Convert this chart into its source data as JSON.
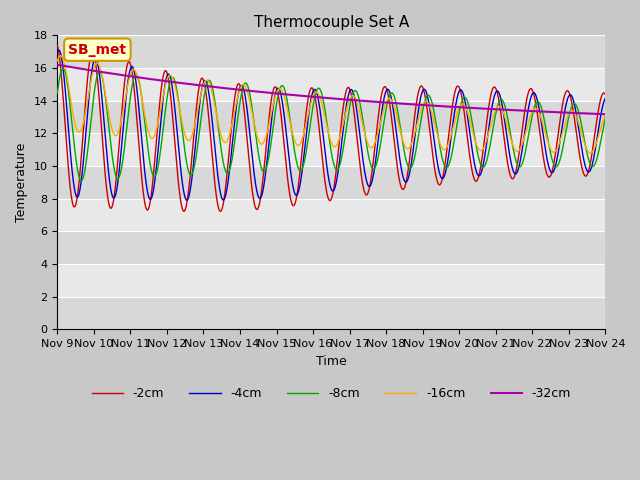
{
  "title": "Thermocouple Set A",
  "xlabel": "Time",
  "ylabel": "Temperature",
  "ylim": [
    0,
    18
  ],
  "xlim": [
    0,
    15
  ],
  "x_tick_labels": [
    "Nov 9",
    "Nov 10",
    "Nov 11",
    "Nov 12",
    "Nov 13",
    "Nov 14",
    "Nov 15",
    "Nov 16",
    "Nov 17",
    "Nov 18",
    "Nov 19",
    "Nov 20",
    "Nov 21",
    "Nov 22",
    "Nov 23",
    "Nov 24"
  ],
  "series_colors": [
    "#cc0000",
    "#0000cc",
    "#00aa00",
    "#ffaa00",
    "#aa00aa"
  ],
  "series_labels": [
    "-2cm",
    "-4cm",
    "-8cm",
    "-16cm",
    "-32cm"
  ],
  "annotation_text": "SB_met",
  "annotation_bg": "#ffffcc",
  "annotation_border": "#cc9900",
  "title_fontsize": 11,
  "axis_fontsize": 9,
  "tick_fontsize": 8,
  "legend_fontsize": 9,
  "band_colors": [
    "#d8d8d8",
    "#e8e8e8"
  ]
}
